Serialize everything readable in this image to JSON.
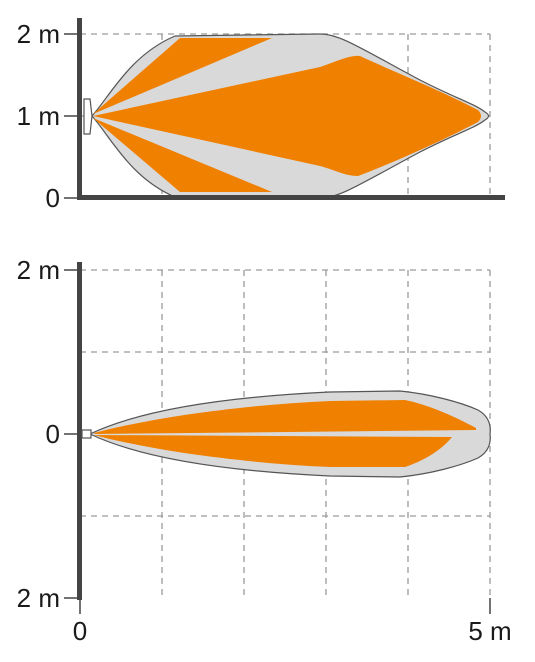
{
  "top_panel": {
    "y_labels": [
      "2 m",
      "1 m",
      "0"
    ]
  },
  "bottom_panel": {
    "y_labels": [
      "2 m",
      "0",
      "2 m"
    ],
    "x_labels": [
      "0",
      "5 m"
    ]
  },
  "colors": {
    "coverage_fill": "#f08000",
    "envelope_fill": "#d9d9d9",
    "envelope_stroke": "#555555",
    "axis": "#444444",
    "grid": "#9a9a9a"
  }
}
